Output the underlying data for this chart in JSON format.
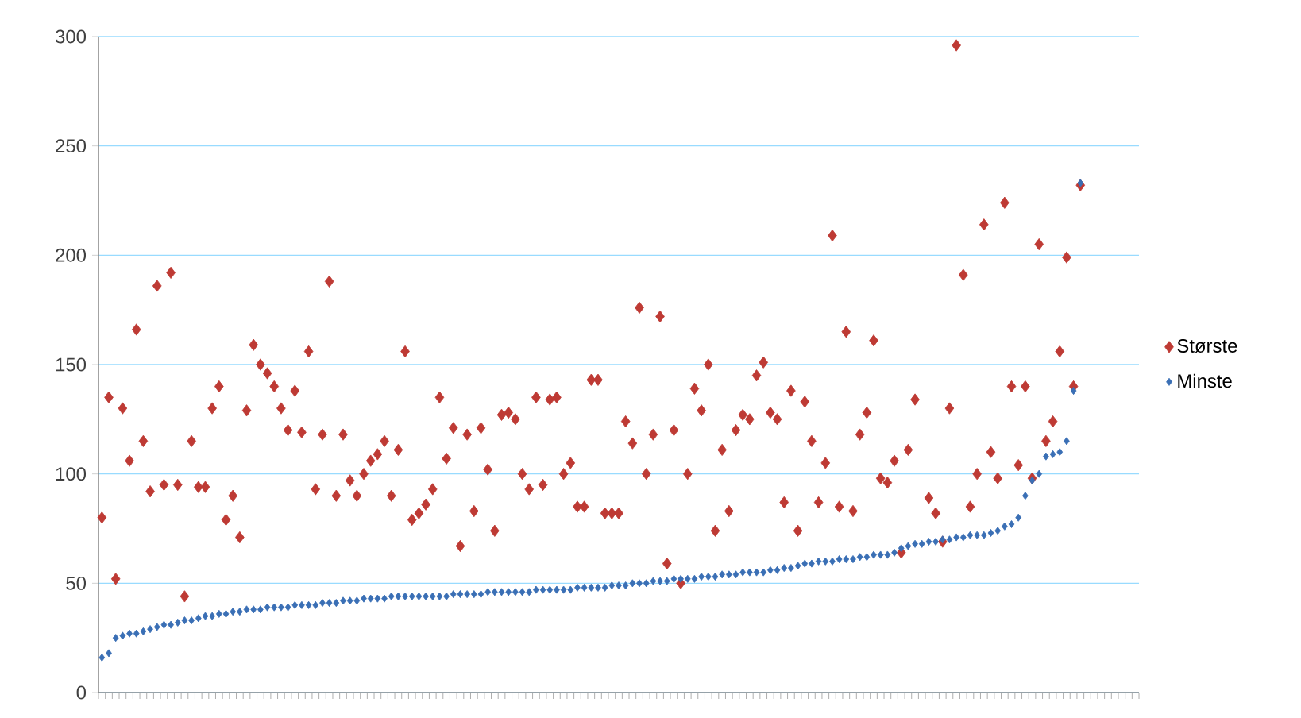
{
  "chart_data": {
    "type": "scatter",
    "categories": [
      null,
      null,
      null,
      null,
      null,
      null,
      null,
      null,
      null,
      null,
      null,
      null,
      null,
      null,
      null,
      null,
      null,
      null,
      null,
      null,
      null,
      null,
      null,
      null,
      null,
      null,
      null,
      null,
      null,
      null,
      null,
      null,
      null,
      null,
      null,
      null,
      null,
      null,
      null,
      null,
      null,
      null,
      null,
      null,
      null,
      null,
      null,
      null,
      null,
      null,
      null,
      null,
      null,
      null,
      null,
      null,
      null,
      null,
      null,
      null,
      null,
      null,
      null,
      null,
      null,
      null,
      null,
      null,
      null,
      null,
      null,
      null,
      null,
      null,
      null,
      null,
      null,
      null,
      null,
      null,
      null,
      null,
      null,
      null,
      null,
      null,
      null,
      null,
      null,
      null,
      null,
      null,
      null,
      null,
      null,
      null,
      null,
      null,
      null,
      null,
      null,
      null,
      null,
      null,
      null,
      null,
      null,
      null,
      null,
      null,
      null,
      null,
      null,
      null,
      null,
      null,
      null,
      null,
      null,
      null,
      null,
      null,
      null,
      null,
      null,
      null,
      null,
      null,
      null,
      null,
      null,
      null,
      null,
      null,
      null,
      null,
      null,
      null,
      null,
      null,
      null,
      null,
      null,
      null,
      null,
      null,
      null,
      null,
      null,
      null,
      null
    ],
    "series": [
      {
        "name": "Største",
        "color": "#be3a34",
        "values": [
          80,
          135,
          52,
          130,
          106,
          166,
          115,
          92,
          186,
          95,
          192,
          95,
          44,
          115,
          94,
          94,
          130,
          140,
          79,
          90,
          71,
          129,
          159,
          150,
          146,
          140,
          130,
          120,
          138,
          119,
          156,
          93,
          118,
          188,
          90,
          118,
          97,
          90,
          100,
          106,
          109,
          115,
          90,
          111,
          156,
          79,
          82,
          86,
          93,
          135,
          107,
          121,
          67,
          118,
          83,
          121,
          102,
          74,
          127,
          128,
          125,
          100,
          93,
          135,
          95,
          134,
          135,
          100,
          105,
          85,
          85,
          143,
          143,
          82,
          82,
          82,
          124,
          114,
          176,
          100,
          118,
          172,
          59,
          120,
          50,
          100,
          139,
          129,
          150,
          74,
          111,
          83,
          120,
          127,
          125,
          145,
          151,
          128,
          125,
          87,
          138,
          74,
          133,
          115,
          87,
          105,
          209,
          85,
          165,
          83,
          118,
          128,
          161,
          98,
          96,
          106,
          64,
          111,
          134,
          null,
          89,
          82,
          69,
          130,
          296,
          191,
          85,
          100,
          214,
          110,
          98,
          224,
          140,
          104,
          140,
          98,
          205,
          115,
          124,
          156,
          199,
          140,
          232,
          null,
          null,
          null,
          null,
          null,
          null,
          null,
          null
        ]
      },
      {
        "name": "Minste",
        "color": "#3a6fb5",
        "values": [
          16,
          18,
          25,
          26,
          27,
          27,
          28,
          29,
          30,
          31,
          31,
          32,
          33,
          33,
          34,
          35,
          35,
          36,
          36,
          37,
          37,
          38,
          38,
          38,
          39,
          39,
          39,
          39,
          40,
          40,
          40,
          40,
          41,
          41,
          41,
          42,
          42,
          42,
          43,
          43,
          43,
          43,
          44,
          44,
          44,
          44,
          44,
          44,
          44,
          44,
          44,
          45,
          45,
          45,
          45,
          45,
          46,
          46,
          46,
          46,
          46,
          46,
          46,
          47,
          47,
          47,
          47,
          47,
          47,
          48,
          48,
          48,
          48,
          48,
          49,
          49,
          49,
          50,
          50,
          50,
          51,
          51,
          51,
          52,
          52,
          52,
          52,
          53,
          53,
          53,
          54,
          54,
          54,
          55,
          55,
          55,
          55,
          56,
          56,
          57,
          57,
          58,
          59,
          59,
          60,
          60,
          60,
          61,
          61,
          61,
          62,
          62,
          63,
          63,
          63,
          64,
          66,
          67,
          68,
          68,
          69,
          69,
          70,
          70,
          71,
          71,
          72,
          72,
          72,
          73,
          74,
          76,
          77,
          80,
          90,
          97,
          100,
          108,
          109,
          110,
          115,
          138,
          233,
          null,
          null,
          null,
          null,
          null,
          null,
          null,
          null
        ]
      }
    ],
    "ylim": [
      0,
      300
    ],
    "yticks": [
      0,
      50,
      100,
      150,
      200,
      250,
      300
    ],
    "grid": "y",
    "legend": "right",
    "marker": "diamond",
    "tick_labels": "y"
  }
}
